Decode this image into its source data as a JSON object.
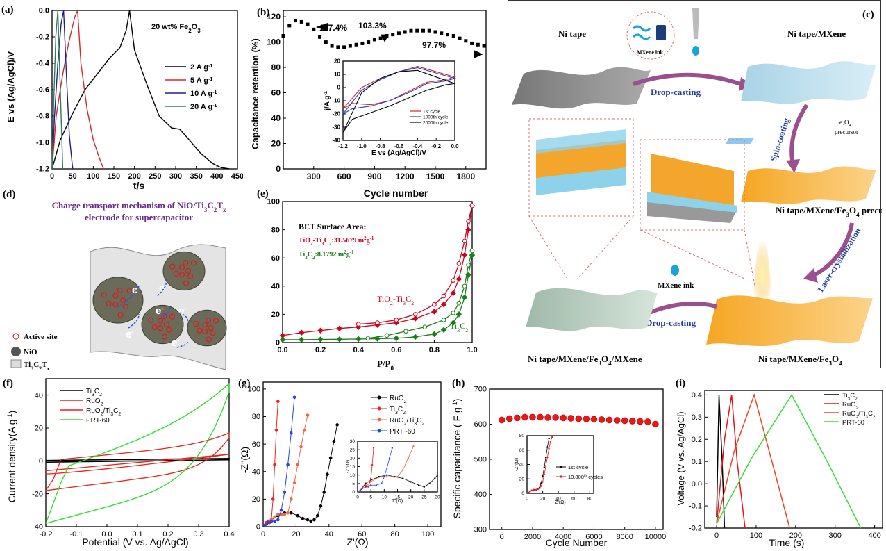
{
  "labels": {
    "a": "(a)",
    "b": "(b)",
    "c": "(c)",
    "d": "(d)",
    "e": "(e)",
    "f": "(f)",
    "g": "(g)",
    "h": "(h)",
    "i": "(i)"
  },
  "panel_c": {
    "ni_tape": "Ni tape",
    "ni_tape_mxene": "Ni tape/MXene",
    "mxene_ink": "MXene ink",
    "drop_casting": "Drop-casting",
    "spin_coating": "Spin-coating",
    "fe3o4": "Fe",
    "precursor": "precursor",
    "ni_mxene_fe3o4_precursor": "Ni tape/MXene/Fe",
    "precursor_suffix": " precursor",
    "laser": "Laser-crystallization",
    "mxene_ink2": "MXene ink",
    "drop_casting2": "Drop-casting",
    "bottom_left": "Ni tape/MXene/Fe",
    "bottom_left_suffix": "/MXene",
    "bottom_right": "Ni tape/MXene/Fe"
  },
  "panel_d": {
    "title1": "Charge transport mechanism of NiO/Ti",
    "title2": "electrode for supercapacitor",
    "electron": "e",
    "legend_active": "Active site",
    "legend_nio": "NiO",
    "legend_ti": "Ti"
  },
  "chart_data": [
    {
      "id": "a",
      "type": "line",
      "annotation": "20 wt% Fe",
      "xlabel": "t/s",
      "ylabel": "E vs (Ag/AgCl)/V",
      "xlim": [
        0,
        450
      ],
      "ylim": [
        -1.2,
        0.0
      ],
      "xticks": [
        0,
        50,
        100,
        150,
        200,
        250,
        300,
        350,
        400,
        450
      ],
      "yticks": [
        0.0,
        -0.2,
        -0.4,
        -0.6,
        -0.8,
        -1.0,
        -1.2
      ],
      "series": [
        {
          "name": "2 A g",
          "color": "#000000",
          "x": [
            0,
            20,
            50,
            80,
            110,
            140,
            165,
            180,
            188,
            200,
            230,
            260,
            290,
            310,
            330,
            360,
            390,
            410,
            430
          ],
          "y": [
            -1.2,
            -0.98,
            -0.78,
            -0.6,
            -0.48,
            -0.36,
            -0.28,
            -0.15,
            0.0,
            -0.3,
            -0.56,
            -0.8,
            -0.89,
            -0.9,
            -0.97,
            -1.08,
            -1.16,
            -1.19,
            -1.2
          ]
        },
        {
          "name": "5 A g",
          "color": "#d62728",
          "x": [
            0,
            10,
            25,
            40,
            55,
            62,
            70,
            85,
            100,
            115,
            125
          ],
          "y": [
            -1.2,
            -0.8,
            -0.5,
            -0.25,
            -0.05,
            0.0,
            -0.4,
            -0.75,
            -0.98,
            -1.12,
            -1.2
          ]
        },
        {
          "name": "10 A g",
          "color": "#1f1f8f",
          "x": [
            0,
            6,
            14,
            22,
            28,
            35,
            42,
            50
          ],
          "y": [
            -1.2,
            -0.8,
            -0.4,
            -0.1,
            0.0,
            -0.5,
            -0.95,
            -1.2
          ]
        },
        {
          "name": "20 A g",
          "color": "#2e7d5b",
          "x": [
            0,
            4,
            9,
            14,
            20,
            26
          ],
          "y": [
            -1.2,
            -0.7,
            -0.2,
            0.0,
            -0.6,
            -1.2
          ]
        }
      ]
    },
    {
      "id": "b",
      "type": "scatter",
      "xlabel": "Cycle number",
      "ylabel": "Capacitance retention (%)",
      "xlim": [
        0,
        2000
      ],
      "ylim": [
        0,
        125
      ],
      "xticks": [
        300,
        600,
        900,
        1200,
        1500,
        1800
      ],
      "yticks": [
        0,
        20,
        40,
        60,
        80,
        100,
        120
      ],
      "annotations": [
        "117.4%",
        "103.3%",
        "97.7%"
      ],
      "x": [
        0,
        60,
        120,
        180,
        240,
        300,
        360,
        420,
        480,
        540,
        600,
        660,
        720,
        780,
        840,
        900,
        960,
        1020,
        1080,
        1140,
        1200,
        1260,
        1320,
        1380,
        1440,
        1500,
        1560,
        1620,
        1680,
        1740,
        1800,
        1860,
        1920,
        1980
      ],
      "y": [
        105,
        113,
        117,
        116,
        114,
        110,
        104,
        100,
        97,
        96,
        96,
        97,
        98,
        99,
        100,
        102,
        103,
        105,
        106,
        107,
        108,
        109,
        109,
        109,
        109,
        108,
        107,
        106,
        105,
        103,
        101,
        99,
        98,
        97
      ],
      "inset": {
        "xlabel": "E vs (Ag/AgCl)/V",
        "ylabel": "j/A g",
        "xlim": [
          -1.2,
          0.0
        ],
        "ylim": [
          -40,
          20
        ],
        "xticks": [
          -1.2,
          -1.0,
          -0.8,
          -0.6,
          -0.4,
          -0.2,
          0.0
        ],
        "yticks": [
          20,
          10,
          0,
          -10,
          -20,
          -30,
          -40
        ],
        "series": [
          {
            "name": "1st cycle",
            "color": "#d62728"
          },
          {
            "name": "1000th cycle",
            "color": "#1f3fbf"
          },
          {
            "name": "2000th cycle",
            "color": "#000000"
          }
        ]
      }
    },
    {
      "id": "e",
      "type": "line",
      "xlabel": "P/P",
      "ylabel": "",
      "xlim": [
        0.0,
        1.0
      ],
      "ylim": [
        0,
        100
      ],
      "xticks": [
        0.0,
        0.2,
        0.4,
        0.6,
        0.8,
        1.0
      ],
      "yticks": [
        0,
        20,
        40,
        60,
        80,
        100
      ],
      "bet_title": "BET Surface Area:",
      "bet_tio2": "TiO",
      "bet_tio2_value": ":31.5679 m",
      "bet_ti3c2": "Ti",
      "bet_ti3c2_value": ":8.1792 m",
      "label_tio2": "TiO",
      "label_ti3c2": "Ti",
      "series": [
        {
          "name": "TiO2-Ti3C2 adsorption",
          "color": "#d0021b",
          "x": [
            0.0,
            0.1,
            0.2,
            0.3,
            0.4,
            0.5,
            0.6,
            0.7,
            0.8,
            0.85,
            0.9,
            0.93,
            0.96,
            0.98,
            1.0
          ],
          "y": [
            5,
            7,
            8.5,
            10,
            11,
            12.5,
            14,
            17,
            22,
            27,
            35,
            45,
            62,
            80,
            97
          ]
        },
        {
          "name": "TiO2-Ti3C2 desorption",
          "color": "#d0021b",
          "x": [
            0.4,
            0.5,
            0.6,
            0.7,
            0.8,
            0.85,
            0.9,
            0.93,
            0.96,
            0.98,
            1.0
          ],
          "y": [
            13,
            14,
            16,
            20,
            27,
            33,
            44,
            56,
            72,
            86,
            97
          ]
        },
        {
          "name": "Ti3C2 adsorption",
          "color": "#1a7f1a",
          "x": [
            0.0,
            0.1,
            0.2,
            0.3,
            0.4,
            0.5,
            0.6,
            0.7,
            0.8,
            0.85,
            0.9,
            0.93,
            0.96,
            0.98,
            1.0
          ],
          "y": [
            2,
            2,
            2.2,
            2.3,
            2.5,
            2.7,
            3,
            4,
            6,
            9,
            14,
            20,
            32,
            48,
            62
          ]
        },
        {
          "name": "Ti3C2 desorption",
          "color": "#1a7f1a",
          "x": [
            0.45,
            0.55,
            0.65,
            0.75,
            0.85,
            0.9,
            0.93,
            0.96,
            0.98,
            1.0
          ],
          "y": [
            3,
            5,
            8,
            11,
            16,
            21,
            28,
            40,
            55,
            65
          ]
        }
      ]
    },
    {
      "id": "f",
      "type": "line",
      "xlabel": "Potential (V vs. Ag/AgCl)",
      "ylabel": "Current density(A g",
      "xlim": [
        -0.2,
        0.4
      ],
      "ylim": [
        -40,
        50
      ],
      "xticks": [
        -0.2,
        -0.1,
        0.0,
        0.1,
        0.2,
        0.3,
        0.4
      ],
      "yticks": [
        -40,
        -20,
        0,
        20,
        40
      ],
      "series": [
        {
          "name": "Ti",
          "color": "#000000"
        },
        {
          "name": "RuO",
          "color": "#e8231a"
        },
        {
          "name": "RuO",
          "color": "#e8231a"
        },
        {
          "name": "PRT-60",
          "color": "#33dd33"
        }
      ]
    },
    {
      "id": "g",
      "type": "scatter",
      "xlabel": "Z'(Ω)",
      "ylabel": "-Z''(Ω)",
      "xlim": [
        0,
        108
      ],
      "ylim": [
        0,
        105
      ],
      "xticks": [
        0,
        20,
        40,
        60,
        80,
        100
      ],
      "yticks": [
        0,
        20,
        40,
        60,
        80,
        100
      ],
      "series": [
        {
          "name": "RuO",
          "color": "#000000",
          "x": [
            2,
            5,
            9,
            13,
            17,
            21,
            24,
            27,
            29,
            31,
            33,
            35,
            37,
            39,
            41,
            43,
            45
          ],
          "y": [
            2,
            5,
            8,
            10,
            10,
            8,
            6,
            5,
            4,
            5,
            8,
            15,
            25,
            38,
            50,
            62,
            74
          ]
        },
        {
          "name": "Ti",
          "color": "#ee2222",
          "x": [
            1,
            2,
            3,
            4,
            5,
            6,
            7,
            8,
            9
          ],
          "y": [
            1,
            3,
            4,
            3,
            5,
            20,
            45,
            70,
            91
          ]
        },
        {
          "name": "RuO",
          "color": "#ee6644",
          "x": [
            1,
            3,
            5,
            7,
            9,
            11,
            13,
            15,
            17,
            19,
            21,
            23,
            25,
            27
          ],
          "y": [
            1,
            3,
            5,
            7,
            9,
            9,
            9,
            10,
            20,
            32,
            45,
            58,
            70,
            81
          ]
        },
        {
          "name": "PRT -60",
          "color": "#2244ee",
          "x": [
            1,
            3,
            5,
            7,
            9,
            11,
            13,
            15,
            17,
            19
          ],
          "y": [
            1,
            3,
            4,
            4,
            5,
            12,
            25,
            45,
            68,
            94
          ]
        }
      ],
      "inset": {
        "xlabel": "Z'(Ω)",
        "ylabel": "-Z''(Ω)",
        "xticks": [
          0,
          5,
          10,
          15,
          20,
          25,
          30
        ],
        "yticks": [
          0,
          5,
          10,
          15,
          20,
          25,
          30
        ]
      }
    },
    {
      "id": "h",
      "type": "scatter",
      "xlabel": "Cycle Number",
      "ylabel": "Specific capacitance ( F g",
      "xlim": [
        -800,
        10500
      ],
      "ylim": [
        300,
        700
      ],
      "xticks": [
        0,
        2000,
        4000,
        6000,
        8000,
        10000
      ],
      "yticks": [
        300,
        400,
        500,
        600,
        700
      ],
      "x": [
        0,
        500,
        1000,
        1500,
        2000,
        2500,
        3000,
        3500,
        4000,
        4500,
        5000,
        5500,
        6000,
        6500,
        7000,
        7500,
        8000,
        8500,
        9000,
        9500,
        10000
      ],
      "y": [
        612,
        616,
        618,
        620,
        620,
        620,
        619,
        619,
        618,
        617,
        616,
        615,
        614,
        613,
        612,
        611,
        610,
        609,
        608,
        607,
        600
      ],
      "inset": {
        "legend": [
          "1st cycle",
          "10,000"
        ],
        "legend_suffix": " cycles",
        "xlabel": "Z'(Ω)",
        "ylabel": "-Z''(Ω)",
        "xticks": [
          0,
          20,
          40,
          60,
          80
        ],
        "yticks": [
          0,
          20,
          40,
          60,
          80
        ]
      }
    },
    {
      "id": "i",
      "type": "line",
      "xlabel": "Time (s)",
      "ylabel": "Voltage (V vs. Ag/AgCl)",
      "xlim": [
        -30,
        420
      ],
      "ylim": [
        -0.2,
        0.42
      ],
      "xticks": [
        0,
        100,
        200,
        300,
        400
      ],
      "yticks": [
        -0.2,
        -0.1,
        0.0,
        0.1,
        0.2,
        0.3,
        0.4
      ],
      "series": [
        {
          "name": "Ti",
          "color": "#000000",
          "x": [
            0,
            6,
            14,
            20
          ],
          "y": [
            -0.15,
            0.4,
            0.1,
            -0.2
          ]
        },
        {
          "name": "RuO",
          "color": "#ee1111",
          "x": [
            0,
            20,
            38,
            52,
            72
          ],
          "y": [
            -0.18,
            0.2,
            0.4,
            0.1,
            -0.2
          ]
        },
        {
          "name": "RuO",
          "color": "#ee4422",
          "x": [
            0,
            45,
            95,
            140,
            185
          ],
          "y": [
            -0.18,
            0.15,
            0.4,
            0.1,
            -0.2
          ]
        },
        {
          "name": "PRT-60",
          "color": "#33dd33",
          "x": [
            0,
            90,
            190,
            280,
            365
          ],
          "y": [
            -0.18,
            0.12,
            0.4,
            0.1,
            -0.2
          ]
        }
      ]
    }
  ]
}
